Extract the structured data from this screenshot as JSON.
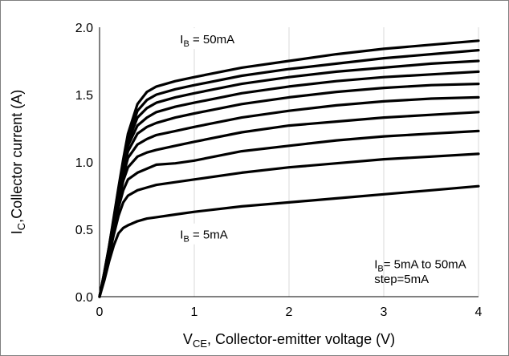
{
  "chart_data": {
    "type": "line",
    "title": "",
    "xlabel": {
      "main": "V",
      "sub": "CE",
      "rest": ", Collector-emitter voltage (V)"
    },
    "ylabel": {
      "main": "I",
      "sub": "C",
      "rest": ",Collector current (A)"
    },
    "xlim": [
      0,
      4
    ],
    "ylim": [
      0,
      2.0
    ],
    "xticks": [
      0,
      1,
      2,
      3,
      4
    ],
    "yticks": [
      0.0,
      0.5,
      1.0,
      1.5,
      2.0
    ],
    "xtick_labels": [
      "0",
      "1",
      "2",
      "3",
      "4"
    ],
    "ytick_labels": [
      "0.0",
      "0.5",
      "1.0",
      "1.5",
      "2.0"
    ],
    "grid": {
      "x": true,
      "y": false
    },
    "line_color": "#000000",
    "x": [
      0,
      0.05,
      0.1,
      0.15,
      0.2,
      0.25,
      0.3,
      0.4,
      0.5,
      0.6,
      0.8,
      1.0,
      1.5,
      2.0,
      2.5,
      3.0,
      3.5,
      4.0
    ],
    "series": [
      {
        "values": [
          0,
          0.12,
          0.26,
          0.38,
          0.47,
          0.51,
          0.53,
          0.56,
          0.58,
          0.59,
          0.61,
          0.63,
          0.67,
          0.7,
          0.73,
          0.76,
          0.79,
          0.82
        ]
      },
      {
        "values": [
          0,
          0.14,
          0.3,
          0.46,
          0.6,
          0.7,
          0.75,
          0.79,
          0.81,
          0.83,
          0.85,
          0.87,
          0.92,
          0.96,
          0.99,
          1.02,
          1.04,
          1.06
        ]
      },
      {
        "values": [
          0,
          0.15,
          0.32,
          0.5,
          0.66,
          0.79,
          0.87,
          0.92,
          0.95,
          0.98,
          0.99,
          1.01,
          1.08,
          1.12,
          1.16,
          1.19,
          1.21,
          1.23
        ]
      },
      {
        "values": [
          0,
          0.16,
          0.33,
          0.52,
          0.7,
          0.86,
          0.96,
          1.04,
          1.07,
          1.09,
          1.12,
          1.15,
          1.22,
          1.27,
          1.3,
          1.33,
          1.35,
          1.37
        ]
      },
      {
        "values": [
          0,
          0.16,
          0.34,
          0.54,
          0.73,
          0.9,
          1.03,
          1.13,
          1.17,
          1.2,
          1.23,
          1.26,
          1.33,
          1.38,
          1.42,
          1.45,
          1.47,
          1.48
        ]
      },
      {
        "values": [
          0,
          0.17,
          0.35,
          0.55,
          0.75,
          0.93,
          1.08,
          1.21,
          1.26,
          1.29,
          1.33,
          1.36,
          1.43,
          1.48,
          1.52,
          1.55,
          1.57,
          1.58
        ]
      },
      {
        "values": [
          0,
          0.17,
          0.36,
          0.56,
          0.77,
          0.96,
          1.12,
          1.27,
          1.33,
          1.37,
          1.41,
          1.44,
          1.51,
          1.56,
          1.6,
          1.63,
          1.65,
          1.67
        ]
      },
      {
        "values": [
          0,
          0.17,
          0.36,
          0.57,
          0.78,
          0.98,
          1.15,
          1.33,
          1.4,
          1.44,
          1.48,
          1.51,
          1.58,
          1.63,
          1.67,
          1.7,
          1.73,
          1.75
        ]
      },
      {
        "values": [
          0,
          0.18,
          0.37,
          0.58,
          0.8,
          1.0,
          1.18,
          1.38,
          1.46,
          1.5,
          1.54,
          1.57,
          1.64,
          1.69,
          1.73,
          1.77,
          1.8,
          1.83
        ]
      },
      {
        "values": [
          0,
          0.18,
          0.37,
          0.59,
          0.81,
          1.02,
          1.21,
          1.43,
          1.52,
          1.56,
          1.6,
          1.63,
          1.7,
          1.75,
          1.8,
          1.84,
          1.87,
          1.9
        ]
      }
    ],
    "annotations": {
      "top": {
        "main": "I",
        "sub": "B",
        "rest": " = 50mA",
        "x": 0.85,
        "y": 1.91
      },
      "bottom": {
        "main": "I",
        "sub": "B",
        "rest": " = 5mA",
        "x": 0.85,
        "y": 0.46
      },
      "range": {
        "main": "I",
        "sub": "B",
        "rest": "= 5mA to 50mA",
        "x": 2.9,
        "y": 0.24
      },
      "step": {
        "text": "step=5mA",
        "x": 2.9,
        "y": 0.13
      }
    }
  }
}
